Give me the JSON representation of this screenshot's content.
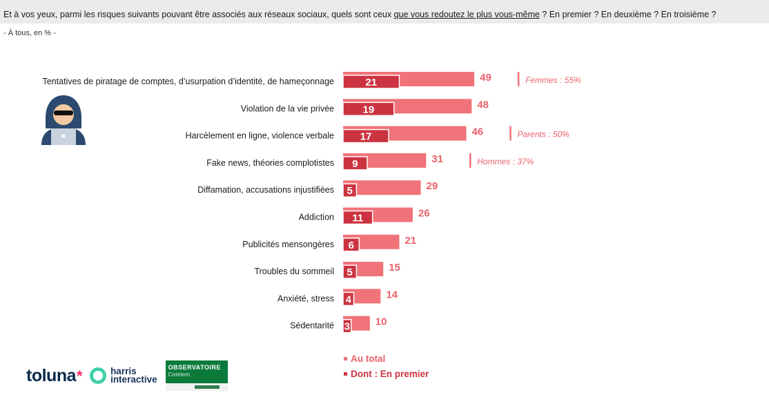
{
  "question": {
    "before": "Et à vos yeux, parmi les risques suivants pouvant être associés aux réseaux sociaux, quels sont ceux ",
    "underlined": "que vous redoutez le plus vous-même",
    "after": " ? En premier ? En deuxième ? En troisième ?"
  },
  "base": "- À tous, en % -",
  "colors": {
    "total": "#f07379",
    "first": "#cc3340",
    "label_total": "#e9616a",
    "header_bg": "#ebebeb"
  },
  "chart_data": {
    "type": "bar",
    "orientation": "horizontal",
    "categories": [
      "Tentatives de piratage de comptes, d’usurpation d’identité, de hameçonnage",
      "Violation de la vie privée",
      "Harcèlement en ligne, violence verbale",
      "Fake news, théories complotistes",
      "Diffamation, accusations injustifiées",
      "Addiction",
      "Publicités mensongères",
      "Troubles du sommeil",
      "Anxiété, stress",
      "Sédentarité"
    ],
    "series": [
      {
        "name": "Au total",
        "values": [
          49,
          48,
          46,
          31,
          29,
          26,
          21,
          15,
          14,
          10
        ]
      },
      {
        "name": "Dont : En premier",
        "values": [
          21,
          19,
          17,
          9,
          5,
          11,
          6,
          5,
          4,
          3
        ]
      }
    ],
    "annotations": [
      {
        "category_index": 0,
        "text": "Femmes : 55%"
      },
      {
        "category_index": 2,
        "text": "Parents : 50%"
      },
      {
        "category_index": 3,
        "text": "Hommes : 37%"
      }
    ],
    "legend_position": "bottom",
    "grid": false
  },
  "legend": {
    "total": "Au total",
    "first": "Dont : En premier"
  },
  "icons": {
    "illustration": "hacker-icon"
  },
  "logos": {
    "toluna": "toluna",
    "harris_line1": "harris",
    "harris_line2": "interactive",
    "observatoire_line1": "OBSERVATOIRE",
    "observatoire_line2": "Cetelem"
  }
}
